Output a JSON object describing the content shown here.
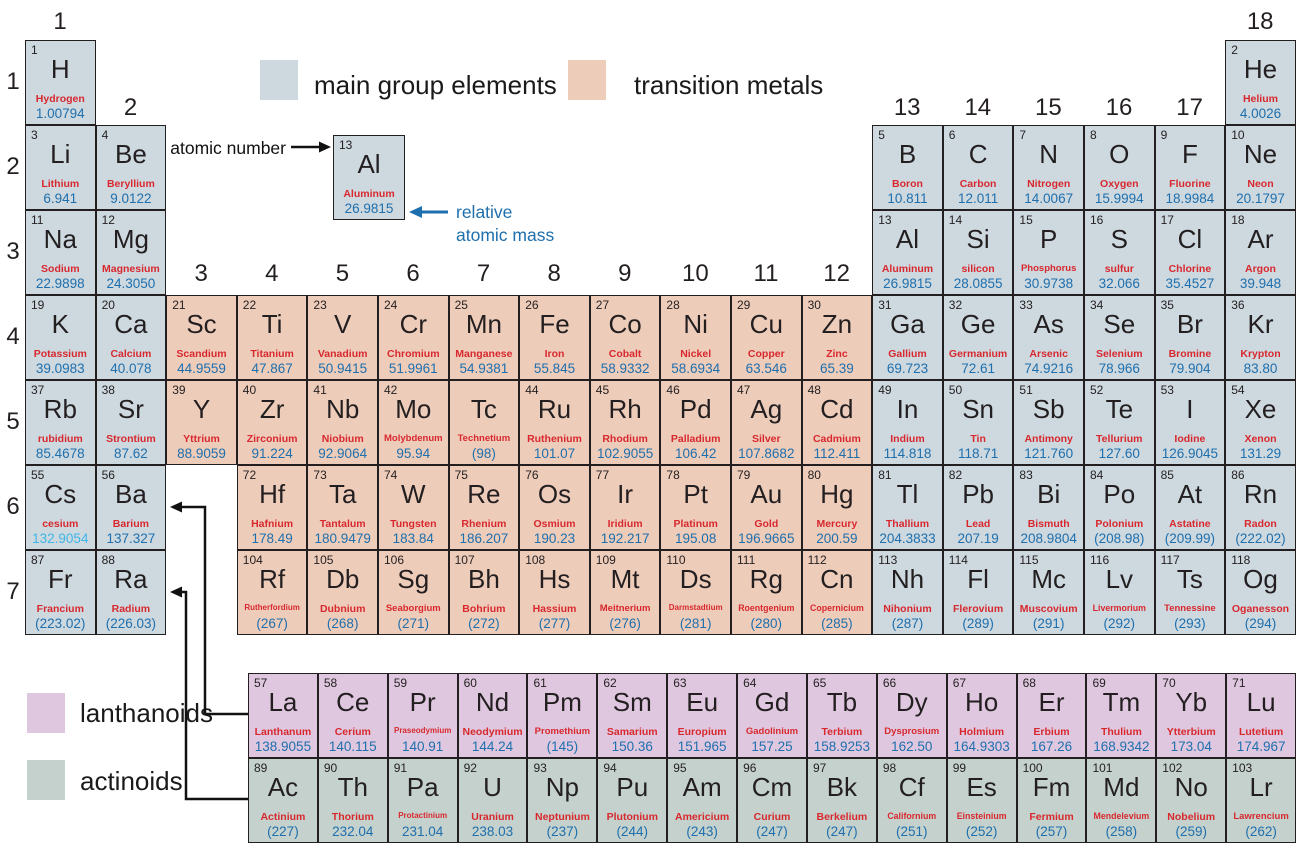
{
  "colors": {
    "main_group": "#cdd8df",
    "transition": "#eeccba",
    "lanthanoid": "#dfc8df",
    "actinoid": "#c4d1cc",
    "name_red": "#d8282e",
    "mass_blue": "#1e6fad",
    "mass_light_blue": "#3fb6e8",
    "border": "#231f20"
  },
  "legend": {
    "main_group": "main group elements",
    "transition": "transition metals",
    "lanthanoids": "lanthanoids",
    "actinoids": "actinoids"
  },
  "annotations": {
    "atomic_number": "atomic number",
    "relative_mass_1": "relative",
    "relative_mass_2": "atomic mass",
    "example": {
      "n": "13",
      "s": "Al",
      "nm": "Aluminum",
      "m": "26.9815"
    }
  },
  "group_labels": [
    {
      "t": "1",
      "col": 1,
      "tier": 1
    },
    {
      "t": "18",
      "col": 18,
      "tier": 1
    },
    {
      "t": "2",
      "col": 2,
      "tier": 2
    },
    {
      "t": "13",
      "col": 13,
      "tier": 2
    },
    {
      "t": "14",
      "col": 14,
      "tier": 2
    },
    {
      "t": "15",
      "col": 15,
      "tier": 2
    },
    {
      "t": "16",
      "col": 16,
      "tier": 2
    },
    {
      "t": "17",
      "col": 17,
      "tier": 2
    },
    {
      "t": "3",
      "col": 3,
      "tier": 4
    },
    {
      "t": "4",
      "col": 4,
      "tier": 4
    },
    {
      "t": "5",
      "col": 5,
      "tier": 4
    },
    {
      "t": "6",
      "col": 6,
      "tier": 4
    },
    {
      "t": "7",
      "col": 7,
      "tier": 4
    },
    {
      "t": "8",
      "col": 8,
      "tier": 4
    },
    {
      "t": "9",
      "col": 9,
      "tier": 4
    },
    {
      "t": "10",
      "col": 10,
      "tier": 4
    },
    {
      "t": "11",
      "col": 11,
      "tier": 4
    },
    {
      "t": "12",
      "col": 12,
      "tier": 4
    }
  ],
  "period_labels": [
    {
      "t": "1",
      "p": 1
    },
    {
      "t": "2",
      "p": 2
    },
    {
      "t": "3",
      "p": 3
    },
    {
      "t": "4",
      "p": 4
    },
    {
      "t": "5",
      "p": 5
    },
    {
      "t": "6",
      "p": 6
    },
    {
      "t": "7",
      "p": 7
    }
  ],
  "elements": [
    {
      "n": "1",
      "s": "H",
      "nm": "Hydrogen",
      "m": "1.00794",
      "g": 1,
      "p": 1,
      "c": "mg"
    },
    {
      "n": "2",
      "s": "He",
      "nm": "Helium",
      "m": "4.0026",
      "g": 18,
      "p": 1,
      "c": "mg"
    },
    {
      "n": "3",
      "s": "Li",
      "nm": "Lithium",
      "m": "6.941",
      "g": 1,
      "p": 2,
      "c": "mg"
    },
    {
      "n": "4",
      "s": "Be",
      "nm": "Beryllium",
      "m": "9.0122",
      "g": 2,
      "p": 2,
      "c": "mg"
    },
    {
      "n": "5",
      "s": "B",
      "nm": "Boron",
      "m": "10.811",
      "g": 13,
      "p": 2,
      "c": "mg"
    },
    {
      "n": "6",
      "s": "C",
      "nm": "Carbon",
      "m": "12.011",
      "g": 14,
      "p": 2,
      "c": "mg"
    },
    {
      "n": "7",
      "s": "N",
      "nm": "Nitrogen",
      "m": "14.0067",
      "g": 15,
      "p": 2,
      "c": "mg"
    },
    {
      "n": "8",
      "s": "O",
      "nm": "Oxygen",
      "m": "15.9994",
      "g": 16,
      "p": 2,
      "c": "mg"
    },
    {
      "n": "9",
      "s": "F",
      "nm": "Fluorine",
      "m": "18.9984",
      "g": 17,
      "p": 2,
      "c": "mg"
    },
    {
      "n": "10",
      "s": "Ne",
      "nm": "Neon",
      "m": "20.1797",
      "g": 18,
      "p": 2,
      "c": "mg"
    },
    {
      "n": "11",
      "s": "Na",
      "nm": "Sodium",
      "m": "22.9898",
      "g": 1,
      "p": 3,
      "c": "mg"
    },
    {
      "n": "12",
      "s": "Mg",
      "nm": "Magnesium",
      "m": "24.3050",
      "g": 2,
      "p": 3,
      "c": "mg"
    },
    {
      "n": "13",
      "s": "Al",
      "nm": "Aluminum",
      "m": "26.9815",
      "g": 13,
      "p": 3,
      "c": "mg"
    },
    {
      "n": "14",
      "s": "Si",
      "nm": "silicon",
      "m": "28.0855",
      "g": 14,
      "p": 3,
      "c": "mg"
    },
    {
      "n": "15",
      "s": "P",
      "nm": "Phosphorus",
      "m": "30.9738",
      "g": 15,
      "p": 3,
      "c": "mg"
    },
    {
      "n": "16",
      "s": "S",
      "nm": "sulfur",
      "m": "32.066",
      "g": 16,
      "p": 3,
      "c": "mg"
    },
    {
      "n": "17",
      "s": "Cl",
      "nm": "Chlorine",
      "m": "35.4527",
      "g": 17,
      "p": 3,
      "c": "mg"
    },
    {
      "n": "18",
      "s": "Ar",
      "nm": "Argon",
      "m": "39.948",
      "g": 18,
      "p": 3,
      "c": "mg"
    },
    {
      "n": "19",
      "s": "K",
      "nm": "Potassium",
      "m": "39.0983",
      "g": 1,
      "p": 4,
      "c": "mg"
    },
    {
      "n": "20",
      "s": "Ca",
      "nm": "Calcium",
      "m": "40.078",
      "g": 2,
      "p": 4,
      "c": "mg"
    },
    {
      "n": "21",
      "s": "Sc",
      "nm": "Scandium",
      "m": "44.9559",
      "g": 3,
      "p": 4,
      "c": "tm"
    },
    {
      "n": "22",
      "s": "Ti",
      "nm": "Titanium",
      "m": "47.867",
      "g": 4,
      "p": 4,
      "c": "tm"
    },
    {
      "n": "23",
      "s": "V",
      "nm": "Vanadium",
      "m": "50.9415",
      "g": 5,
      "p": 4,
      "c": "tm"
    },
    {
      "n": "24",
      "s": "Cr",
      "nm": "Chromium",
      "m": "51.9961",
      "g": 6,
      "p": 4,
      "c": "tm"
    },
    {
      "n": "25",
      "s": "Mn",
      "nm": "Manganese",
      "m": "54.9381",
      "g": 7,
      "p": 4,
      "c": "tm"
    },
    {
      "n": "26",
      "s": "Fe",
      "nm": "Iron",
      "m": "55.845",
      "g": 8,
      "p": 4,
      "c": "tm"
    },
    {
      "n": "27",
      "s": "Co",
      "nm": "Cobalt",
      "m": "58.9332",
      "g": 9,
      "p": 4,
      "c": "tm"
    },
    {
      "n": "28",
      "s": "Ni",
      "nm": "Nickel",
      "m": "58.6934",
      "g": 10,
      "p": 4,
      "c": "tm"
    },
    {
      "n": "29",
      "s": "Cu",
      "nm": "Copper",
      "m": "63.546",
      "g": 11,
      "p": 4,
      "c": "tm"
    },
    {
      "n": "30",
      "s": "Zn",
      "nm": "Zinc",
      "m": "65.39",
      "g": 12,
      "p": 4,
      "c": "tm"
    },
    {
      "n": "31",
      "s": "Ga",
      "nm": "Gallium",
      "m": "69.723",
      "g": 13,
      "p": 4,
      "c": "mg"
    },
    {
      "n": "32",
      "s": "Ge",
      "nm": "Germanium",
      "m": "72.61",
      "g": 14,
      "p": 4,
      "c": "mg"
    },
    {
      "n": "33",
      "s": "As",
      "nm": "Arsenic",
      "m": "74.9216",
      "g": 15,
      "p": 4,
      "c": "mg"
    },
    {
      "n": "34",
      "s": "Se",
      "nm": "Selenium",
      "m": "78.966",
      "g": 16,
      "p": 4,
      "c": "mg"
    },
    {
      "n": "35",
      "s": "Br",
      "nm": "Bromine",
      "m": "79.904",
      "g": 17,
      "p": 4,
      "c": "mg"
    },
    {
      "n": "36",
      "s": "Kr",
      "nm": "Krypton",
      "m": "83.80",
      "g": 18,
      "p": 4,
      "c": "mg"
    },
    {
      "n": "37",
      "s": "Rb",
      "nm": "rubidium",
      "m": "85.4678",
      "g": 1,
      "p": 5,
      "c": "mg"
    },
    {
      "n": "38",
      "s": "Sr",
      "nm": "Strontium",
      "m": "87.62",
      "g": 2,
      "p": 5,
      "c": "mg"
    },
    {
      "n": "39",
      "s": "Y",
      "nm": "Yttrium",
      "m": "88.9059",
      "g": 3,
      "p": 5,
      "c": "tm"
    },
    {
      "n": "40",
      "s": "Zr",
      "nm": "Zirconium",
      "m": "91.224",
      "g": 4,
      "p": 5,
      "c": "tm"
    },
    {
      "n": "41",
      "s": "Nb",
      "nm": "Niobium",
      "m": "92.9064",
      "g": 5,
      "p": 5,
      "c": "tm"
    },
    {
      "n": "42",
      "s": "Mo",
      "nm": "Molybdenum",
      "m": "95.94",
      "g": 6,
      "p": 5,
      "c": "tm"
    },
    {
      "n": "",
      "s": "Tc",
      "nm": "Technetium",
      "m": "(98)",
      "g": 7,
      "p": 5,
      "c": "tm"
    },
    {
      "n": "44",
      "s": "Ru",
      "nm": "Ruthenium",
      "m": "101.07",
      "g": 8,
      "p": 5,
      "c": "tm"
    },
    {
      "n": "45",
      "s": "Rh",
      "nm": "Rhodium",
      "m": "102.9055",
      "g": 9,
      "p": 5,
      "c": "tm"
    },
    {
      "n": "46",
      "s": "Pd",
      "nm": "Palladium",
      "m": "106.42",
      "g": 10,
      "p": 5,
      "c": "tm"
    },
    {
      "n": "47",
      "s": "Ag",
      "nm": "Silver",
      "m": "107.8682",
      "g": 11,
      "p": 5,
      "c": "tm"
    },
    {
      "n": "48",
      "s": "Cd",
      "nm": "Cadmium",
      "m": "112.411",
      "g": 12,
      "p": 5,
      "c": "tm"
    },
    {
      "n": "49",
      "s": "In",
      "nm": "Indium",
      "m": "114.818",
      "g": 13,
      "p": 5,
      "c": "mg"
    },
    {
      "n": "50",
      "s": "Sn",
      "nm": "Tin",
      "m": "118.71",
      "g": 14,
      "p": 5,
      "c": "mg"
    },
    {
      "n": "51",
      "s": "Sb",
      "nm": "Antimony",
      "m": "121.760",
      "g": 15,
      "p": 5,
      "c": "mg"
    },
    {
      "n": "52",
      "s": "Te",
      "nm": "Tellurium",
      "m": "127.60",
      "g": 16,
      "p": 5,
      "c": "mg"
    },
    {
      "n": "53",
      "s": "I",
      "nm": "Iodine",
      "m": "126.9045",
      "g": 17,
      "p": 5,
      "c": "mg"
    },
    {
      "n": "54",
      "s": "Xe",
      "nm": "Xenon",
      "m": "131.29",
      "g": 18,
      "p": 5,
      "c": "mg"
    },
    {
      "n": "55",
      "s": "Cs",
      "nm": "cesium",
      "m": "132.9054",
      "g": 1,
      "p": 6,
      "c": "mg",
      "mc": "light"
    },
    {
      "n": "56",
      "s": "Ba",
      "nm": "Barium",
      "m": "137.327",
      "g": 2,
      "p": 6,
      "c": "mg"
    },
    {
      "n": "72",
      "s": "Hf",
      "nm": "Hafnium",
      "m": "178.49",
      "g": 4,
      "p": 6,
      "c": "tm"
    },
    {
      "n": "73",
      "s": "Ta",
      "nm": "Tantalum",
      "m": "180.9479",
      "g": 5,
      "p": 6,
      "c": "tm"
    },
    {
      "n": "74",
      "s": "W",
      "nm": "Tungsten",
      "m": "183.84",
      "g": 6,
      "p": 6,
      "c": "tm"
    },
    {
      "n": "75",
      "s": "Re",
      "nm": "Rhenium",
      "m": "186.207",
      "g": 7,
      "p": 6,
      "c": "tm"
    },
    {
      "n": "76",
      "s": "Os",
      "nm": "Osmium",
      "m": "190.23",
      "g": 8,
      "p": 6,
      "c": "tm"
    },
    {
      "n": "77",
      "s": "Ir",
      "nm": "Iridium",
      "m": "192.217",
      "g": 9,
      "p": 6,
      "c": "tm"
    },
    {
      "n": "78",
      "s": "Pt",
      "nm": "Platinum",
      "m": "195.08",
      "g": 10,
      "p": 6,
      "c": "tm"
    },
    {
      "n": "79",
      "s": "Au",
      "nm": "Gold",
      "m": "196.9665",
      "g": 11,
      "p": 6,
      "c": "tm"
    },
    {
      "n": "80",
      "s": "Hg",
      "nm": "Mercury",
      "m": "200.59",
      "g": 12,
      "p": 6,
      "c": "tm"
    },
    {
      "n": "81",
      "s": "Tl",
      "nm": "Thallium",
      "m": "204.3833",
      "g": 13,
      "p": 6,
      "c": "mg"
    },
    {
      "n": "82",
      "s": "Pb",
      "nm": "Lead",
      "m": "207.19",
      "g": 14,
      "p": 6,
      "c": "mg"
    },
    {
      "n": "83",
      "s": "Bi",
      "nm": "Bismuth",
      "m": "208.9804",
      "g": 15,
      "p": 6,
      "c": "mg"
    },
    {
      "n": "84",
      "s": "Po",
      "nm": "Polonium",
      "m": "(208.98)",
      "g": 16,
      "p": 6,
      "c": "mg"
    },
    {
      "n": "85",
      "s": "At",
      "nm": "Astatine",
      "m": "(209.99)",
      "g": 17,
      "p": 6,
      "c": "mg"
    },
    {
      "n": "86",
      "s": "Rn",
      "nm": "Radon",
      "m": "(222.02)",
      "g": 18,
      "p": 6,
      "c": "mg"
    },
    {
      "n": "87",
      "s": "Fr",
      "nm": "Francium",
      "m": "(223.02)",
      "g": 1,
      "p": 7,
      "c": "mg"
    },
    {
      "n": "88",
      "s": "Ra",
      "nm": "Radium",
      "m": "(226.03)",
      "g": 2,
      "p": 7,
      "c": "mg"
    },
    {
      "n": "104",
      "s": "Rf",
      "nm": "Rutherfordium",
      "m": "(267)",
      "g": 4,
      "p": 7,
      "c": "tm"
    },
    {
      "n": "105",
      "s": "Db",
      "nm": "Dubnium",
      "m": "(268)",
      "g": 5,
      "p": 7,
      "c": "tm"
    },
    {
      "n": "106",
      "s": "Sg",
      "nm": "Seaborgium",
      "m": "(271)",
      "g": 6,
      "p": 7,
      "c": "tm"
    },
    {
      "n": "107",
      "s": "Bh",
      "nm": "Bohrium",
      "m": "(272)",
      "g": 7,
      "p": 7,
      "c": "tm"
    },
    {
      "n": "108",
      "s": "Hs",
      "nm": "Hassium",
      "m": "(277)",
      "g": 8,
      "p": 7,
      "c": "tm"
    },
    {
      "n": "109",
      "s": "Mt",
      "nm": "Meitnerium",
      "m": "(276)",
      "g": 9,
      "p": 7,
      "c": "tm"
    },
    {
      "n": "110",
      "s": "Ds",
      "nm": "Darmstadtium",
      "m": "(281)",
      "g": 10,
      "p": 7,
      "c": "tm"
    },
    {
      "n": "111",
      "s": "Rg",
      "nm": "Roentgenium",
      "m": "(280)",
      "g": 11,
      "p": 7,
      "c": "tm"
    },
    {
      "n": "112",
      "s": "Cn",
      "nm": "Copernicium",
      "m": "(285)",
      "g": 12,
      "p": 7,
      "c": "tm"
    },
    {
      "n": "113",
      "s": "Nh",
      "nm": "Nihonium",
      "m": "(287)",
      "g": 13,
      "p": 7,
      "c": "mg"
    },
    {
      "n": "114",
      "s": "Fl",
      "nm": "Flerovium",
      "m": "(289)",
      "g": 14,
      "p": 7,
      "c": "mg"
    },
    {
      "n": "115",
      "s": "Mc",
      "nm": "Muscovium",
      "m": "(291)",
      "g": 15,
      "p": 7,
      "c": "mg"
    },
    {
      "n": "116",
      "s": "Lv",
      "nm": "Livermorium",
      "m": "(292)",
      "g": 16,
      "p": 7,
      "c": "mg"
    },
    {
      "n": "117",
      "s": "Ts",
      "nm": "Tennessine",
      "m": "(293)",
      "g": 17,
      "p": 7,
      "c": "mg"
    },
    {
      "n": "118",
      "s": "Og",
      "nm": "Oganesson",
      "m": "(294)",
      "g": 18,
      "p": 7,
      "c": "mg"
    }
  ],
  "lanthanoids": [
    {
      "n": "57",
      "s": "La",
      "nm": "Lanthanum",
      "m": "138.9055"
    },
    {
      "n": "58",
      "s": "Ce",
      "nm": "Cerium",
      "m": "140.115"
    },
    {
      "n": "59",
      "s": "Pr",
      "nm": "Praseodymium",
      "m": "140.91"
    },
    {
      "n": "60",
      "s": "Nd",
      "nm": "Neodymium",
      "m": "144.24"
    },
    {
      "n": "61",
      "s": "Pm",
      "nm": "Promethium",
      "m": "(145)"
    },
    {
      "n": "62",
      "s": "Sm",
      "nm": "Samarium",
      "m": "150.36"
    },
    {
      "n": "63",
      "s": "Eu",
      "nm": "Europium",
      "m": "151.965"
    },
    {
      "n": "64",
      "s": "Gd",
      "nm": "Gadolinium",
      "m": "157.25"
    },
    {
      "n": "65",
      "s": "Tb",
      "nm": "Terbium",
      "m": "158.9253"
    },
    {
      "n": "66",
      "s": "Dy",
      "nm": "Dysprosium",
      "m": "162.50"
    },
    {
      "n": "67",
      "s": "Ho",
      "nm": "Holmium",
      "m": "164.9303"
    },
    {
      "n": "68",
      "s": "Er",
      "nm": "Erbium",
      "m": "167.26"
    },
    {
      "n": "69",
      "s": "Tm",
      "nm": "Thulium",
      "m": "168.9342"
    },
    {
      "n": "70",
      "s": "Yb",
      "nm": "Ytterbium",
      "m": "173.04"
    },
    {
      "n": "71",
      "s": "Lu",
      "nm": "Lutetium",
      "m": "174.967"
    }
  ],
  "actinoids": [
    {
      "n": "89",
      "s": "Ac",
      "nm": "Actinium",
      "m": "(227)"
    },
    {
      "n": "90",
      "s": "Th",
      "nm": "Thorium",
      "m": "232.04"
    },
    {
      "n": "91",
      "s": "Pa",
      "nm": "Protactinium",
      "m": "231.04"
    },
    {
      "n": "92",
      "s": "U",
      "nm": "Uranium",
      "m": "238.03"
    },
    {
      "n": "93",
      "s": "Np",
      "nm": "Neptunium",
      "m": "(237)"
    },
    {
      "n": "94",
      "s": "Pu",
      "nm": "Plutonium",
      "m": "(244)"
    },
    {
      "n": "95",
      "s": "Am",
      "nm": "Americium",
      "m": "(243)"
    },
    {
      "n": "96",
      "s": "Cm",
      "nm": "Curium",
      "m": "(247)"
    },
    {
      "n": "97",
      "s": "Bk",
      "nm": "Berkelium",
      "m": "(247)"
    },
    {
      "n": "98",
      "s": "Cf",
      "nm": "Californium",
      "m": "(251)"
    },
    {
      "n": "99",
      "s": "Es",
      "nm": "Einsteinium",
      "m": "(252)"
    },
    {
      "n": "100",
      "s": "Fm",
      "nm": "Fermium",
      "m": "(257)"
    },
    {
      "n": "101",
      "s": "Md",
      "nm": "Mendelevium",
      "m": "(258)"
    },
    {
      "n": "102",
      "s": "No",
      "nm": "Nobelium",
      "m": "(259)"
    },
    {
      "n": "103",
      "s": "Lr",
      "nm": "Lawrencium",
      "m": "(262)"
    }
  ]
}
